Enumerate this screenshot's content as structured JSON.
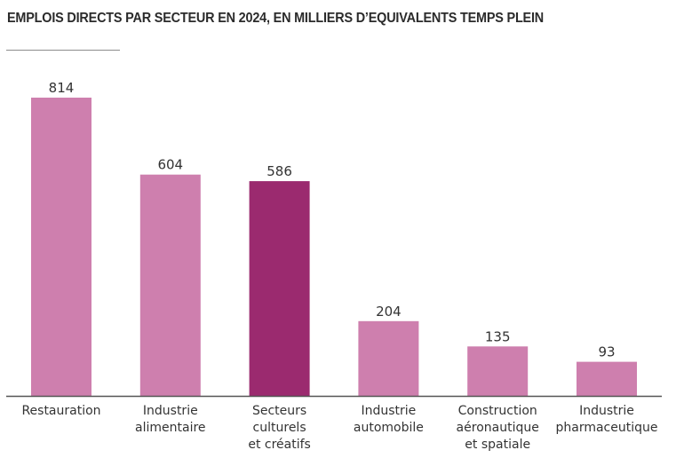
{
  "chart_data": {
    "type": "bar",
    "title": "EMPLOIS DIRECTS PAR SECTEUR EN 2024, EN MILLIERS D’EQUIVALENTS TEMPS PLEIN",
    "xlabel": "",
    "ylabel": "",
    "ylim": [
      0,
      814
    ],
    "grid": false,
    "legend": "none",
    "categories": [
      [
        "Restauration"
      ],
      [
        "Industrie",
        "alimentaire"
      ],
      [
        "Secteurs",
        "culturels",
        "et créatifs"
      ],
      [
        "Industrie",
        "automobile"
      ],
      [
        "Construction",
        "aéronautique",
        "et spatiale"
      ],
      [
        "Industrie",
        "pharmaceutique"
      ]
    ],
    "values": [
      814,
      604,
      586,
      204,
      135,
      93
    ],
    "highlight_index": 2,
    "colors": {
      "default": "#CE7FAE",
      "highlight": "#9B2A6F",
      "axis": "#555555",
      "text": "#333333"
    }
  }
}
